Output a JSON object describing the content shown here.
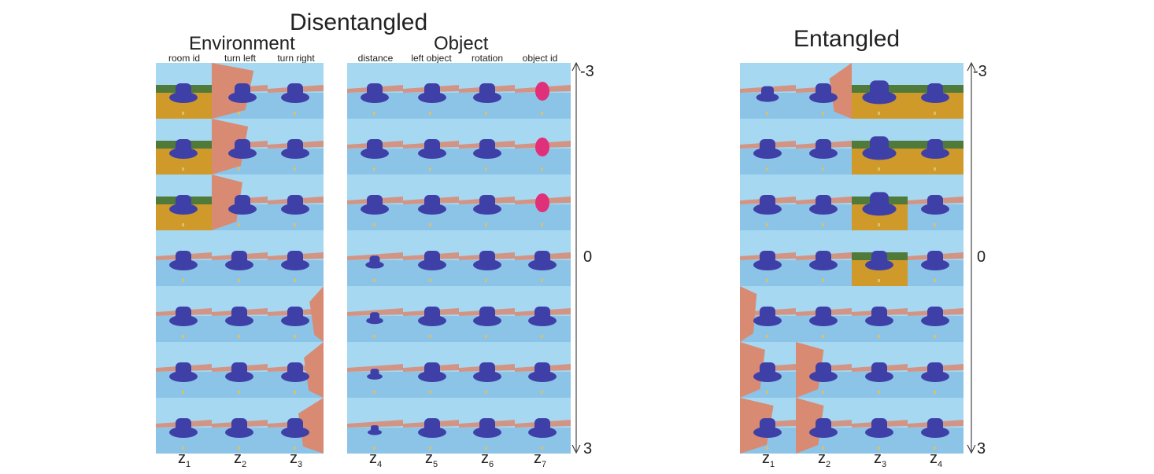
{
  "disentangled": {
    "title": "Disentangled",
    "environment_label": "Environment",
    "object_label": "Object",
    "columns": [
      "room id",
      "turn left",
      "turn right",
      "distance",
      "left object",
      "rotation",
      "object id"
    ],
    "latents": [
      {
        "base": "z",
        "sub": "1"
      },
      {
        "base": "z",
        "sub": "2"
      },
      {
        "base": "z",
        "sub": "3"
      },
      {
        "base": "z",
        "sub": "4"
      },
      {
        "base": "z",
        "sub": "5"
      },
      {
        "base": "z",
        "sub": "6"
      },
      {
        "base": "z",
        "sub": "7"
      }
    ],
    "scale": {
      "top": "-3",
      "middle": "0",
      "bottom": "3"
    }
  },
  "entangled": {
    "title": "Entangled",
    "latents": [
      {
        "base": "z",
        "sub": "1"
      },
      {
        "base": "z",
        "sub": "2"
      },
      {
        "base": "z",
        "sub": "3"
      },
      {
        "base": "z",
        "sub": "4"
      }
    ],
    "scale": {
      "top": "-3",
      "middle": "0",
      "bottom": "3"
    }
  },
  "colors": {
    "sky": "#a6d8f1",
    "floor": "#8cc4e8",
    "wall": "#d98a72",
    "yellow_floor": "#cf9a2a",
    "object": "#3f3fa8",
    "object_id": "#e0307a"
  }
}
